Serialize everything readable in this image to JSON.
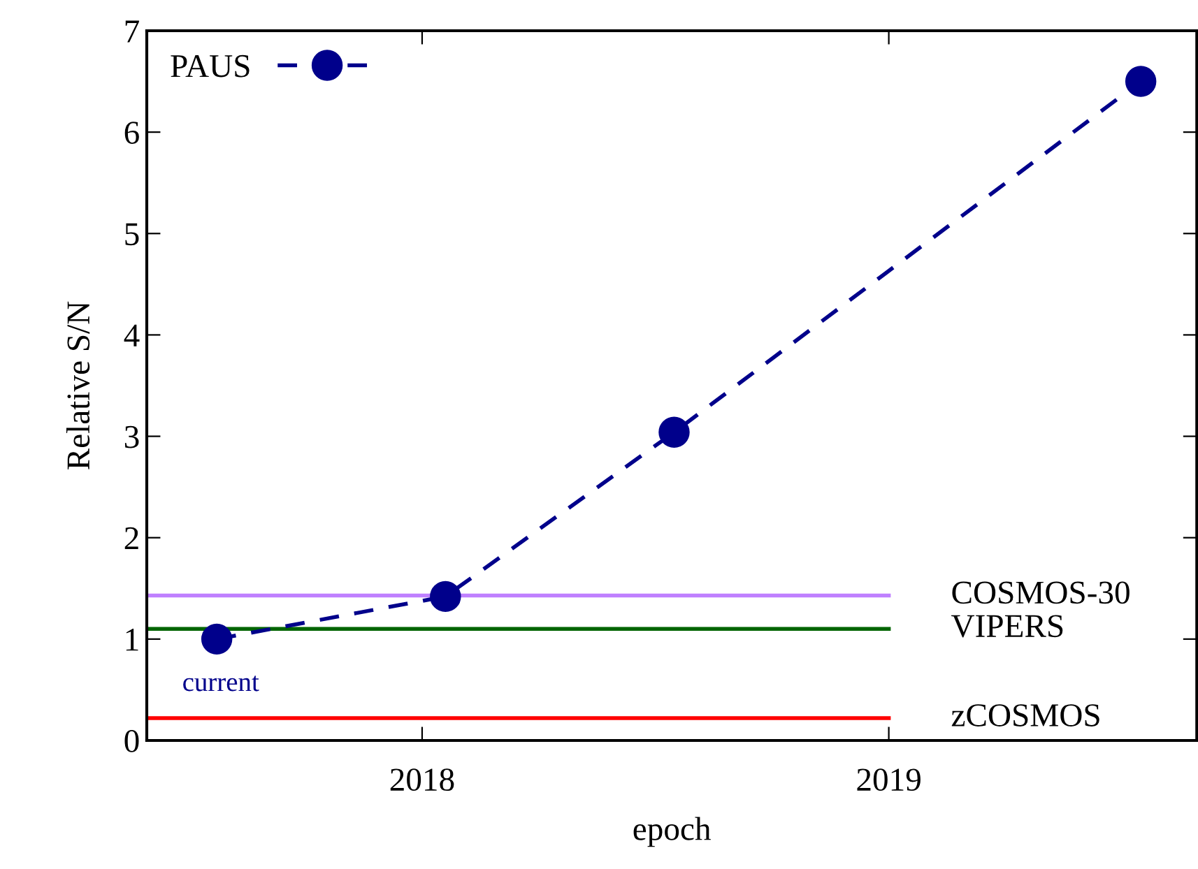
{
  "chart_data": {
    "type": "line",
    "xlabel": "epoch",
    "ylabel": "Relative S/N",
    "xlim": [
      2017.41,
      2019.66
    ],
    "xticks": [
      2018,
      2019
    ],
    "ylim": [
      0,
      7
    ],
    "yticks": [
      0,
      1,
      2,
      3,
      4,
      5,
      6,
      7
    ],
    "series": [
      {
        "name": "PAUS",
        "color": "#00008b",
        "x": [
          2017.56,
          2018.05,
          2018.54,
          2019.54
        ],
        "values": [
          1.0,
          1.42,
          3.04,
          6.5
        ],
        "marker": "circle",
        "line_style": "dashed"
      },
      {
        "name": "COSMOS-30",
        "color": "#bf80ff",
        "x": [
          2017.41,
          2019.0
        ],
        "values": [
          1.43,
          1.43
        ],
        "line_style": "solid"
      },
      {
        "name": "VIPERS",
        "color": "#006400",
        "x": [
          2017.41,
          2019.0
        ],
        "values": [
          1.1,
          1.1
        ],
        "line_style": "solid"
      },
      {
        "name": "zCOSMOS",
        "color": "#ff0000",
        "x": [
          2017.41,
          2019.0
        ],
        "values": [
          0.22,
          0.22
        ],
        "line_style": "solid"
      }
    ],
    "annotations": [
      {
        "text": "current",
        "x": 2017.56,
        "y": 1.0
      }
    ],
    "legend": "top left",
    "grid": false
  }
}
